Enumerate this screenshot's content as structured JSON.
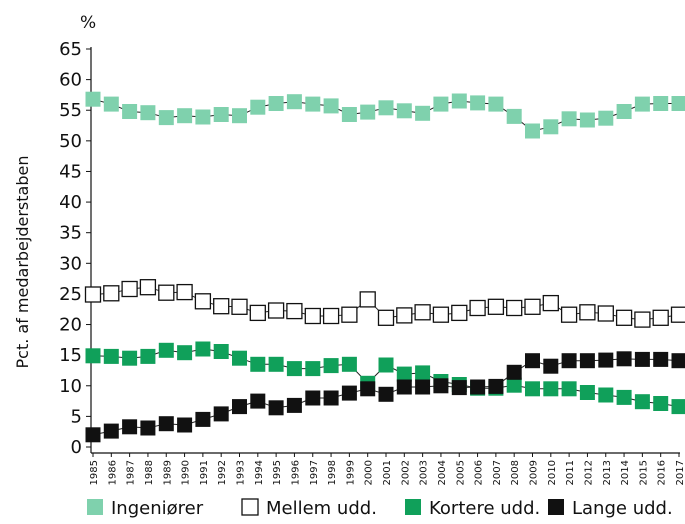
{
  "chart_data": {
    "type": "line",
    "title": "",
    "unit_label": "%",
    "xlabel": "",
    "ylabel": "Pct. af medarbejderstaben",
    "ylim": [
      0,
      65
    ],
    "y_ticks": [
      0,
      5,
      10,
      15,
      20,
      25,
      30,
      35,
      40,
      45,
      50,
      55,
      60,
      65
    ],
    "x": [
      1985,
      1986,
      1987,
      1988,
      1989,
      1990,
      1991,
      1992,
      1993,
      1994,
      1995,
      1996,
      1997,
      1998,
      1999,
      2000,
      2001,
      2002,
      2003,
      2004,
      2005,
      2006,
      2007,
      2008,
      2009,
      2010,
      2011,
      2012,
      2013,
      2014,
      2015,
      2016,
      2017
    ],
    "grid": false,
    "legend_position": "bottom",
    "series": [
      {
        "name": "Ingeniører",
        "color": "#7fd1ad",
        "marker": "filled-square",
        "values": [
          56.8,
          56.0,
          54.8,
          54.6,
          53.8,
          54.1,
          53.9,
          54.3,
          54.1,
          55.5,
          56.1,
          56.4,
          56.0,
          55.7,
          54.3,
          54.7,
          55.4,
          54.9,
          54.5,
          56.0,
          56.5,
          56.2,
          56.0,
          54.0,
          51.6,
          52.3,
          53.6,
          53.4,
          53.7,
          54.8,
          56.0,
          56.1,
          56.1
        ]
      },
      {
        "name": "Mellem udd.",
        "color": "#1a1a1a",
        "marker": "open-square",
        "values": [
          24.9,
          25.1,
          25.8,
          26.1,
          25.2,
          25.3,
          23.8,
          23.0,
          22.9,
          21.9,
          22.3,
          22.2,
          21.4,
          21.4,
          21.6,
          24.1,
          21.1,
          21.5,
          22.0,
          21.6,
          21.9,
          22.7,
          22.9,
          22.7,
          22.9,
          23.5,
          21.6,
          22.0,
          21.8,
          21.1,
          20.8,
          21.1,
          21.6
        ]
      },
      {
        "name": "Kortere udd.",
        "color": "#10a05a",
        "marker": "filled-square",
        "values": [
          14.9,
          14.8,
          14.5,
          14.8,
          15.8,
          15.4,
          16.0,
          15.6,
          14.5,
          13.5,
          13.5,
          12.8,
          12.8,
          13.3,
          13.5,
          10.4,
          13.4,
          11.9,
          12.1,
          10.7,
          10.2,
          9.6,
          9.6,
          10.1,
          9.5,
          9.5,
          9.5,
          8.9,
          8.5,
          8.1,
          7.4,
          7.1,
          6.6
        ]
      },
      {
        "name": "Lange udd.",
        "color": "#111111",
        "marker": "filled-square",
        "values": [
          2.0,
          2.6,
          3.3,
          3.1,
          3.8,
          3.6,
          4.5,
          5.4,
          6.6,
          7.5,
          6.4,
          6.8,
          8.0,
          8.0,
          8.8,
          9.5,
          8.6,
          9.8,
          9.8,
          10.0,
          9.7,
          9.8,
          9.9,
          12.2,
          14.1,
          13.2,
          14.1,
          14.1,
          14.2,
          14.4,
          14.3,
          14.3,
          14.1
        ]
      }
    ]
  }
}
